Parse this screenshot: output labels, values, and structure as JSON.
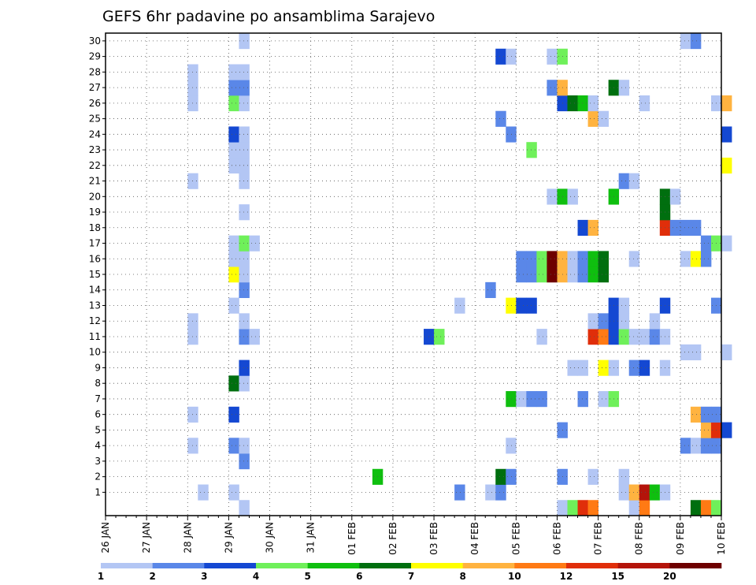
{
  "chart_data": {
    "type": "heatmap",
    "title": "GEFS 6hr padavine po ansamblima Sarajevo",
    "xlabel": "",
    "ylabel": "",
    "x_ticks": [
      "26 JAN",
      "27 JAN",
      "28 JAN",
      "29 JAN",
      "30 JAN",
      "31 JAN",
      "01 FEB",
      "02 FEB",
      "03 FEB",
      "04 FEB",
      "05 FEB",
      "06 FEB",
      "07 FEB",
      "08 FEB",
      "09 FEB",
      "10 FEB"
    ],
    "x_range": [
      "26 JAN 00z",
      "10 FEB 00z"
    ],
    "x_step_hours": 6,
    "y_ticks": [
      1,
      2,
      3,
      4,
      5,
      6,
      7,
      8,
      9,
      10,
      11,
      12,
      13,
      14,
      15,
      16,
      17,
      18,
      19,
      20,
      21,
      22,
      23,
      24,
      25,
      26,
      27,
      28,
      29,
      30
    ],
    "y_range": [
      0,
      30
    ],
    "grid": true,
    "colorbar": {
      "labels": [
        1,
        2,
        3,
        4,
        5,
        6,
        7,
        8,
        10,
        12,
        15,
        20
      ],
      "colors": [
        "#b3c6f4",
        "#5a87e8",
        "#1448d2",
        "#6ff05a",
        "#0fbf0f",
        "#006f0f",
        "#ffff00",
        "#ffb340",
        "#ff7a14",
        "#e02e0a",
        "#b4140a",
        "#6e0000"
      ]
    },
    "cells": [
      {
        "t": 9,
        "m": 1,
        "c": 0
      },
      {
        "t": 8,
        "m": 4,
        "c": 0
      },
      {
        "t": 8,
        "m": 6,
        "c": 0
      },
      {
        "t": 8,
        "m": 12,
        "c": 0
      },
      {
        "t": 8,
        "m": 11,
        "c": 0
      },
      {
        "t": 8,
        "m": 26,
        "c": 0
      },
      {
        "t": 8,
        "m": 27,
        "c": 0
      },
      {
        "t": 8,
        "m": 28,
        "c": 0
      },
      {
        "t": 8,
        "m": 21,
        "c": 0
      },
      {
        "t": 12,
        "m": 1,
        "c": 0
      },
      {
        "t": 12,
        "m": 4,
        "c": 1
      },
      {
        "t": 12,
        "m": 6,
        "c": 2
      },
      {
        "t": 12,
        "m": 8,
        "c": 5
      },
      {
        "t": 12,
        "m": 13,
        "c": 0
      },
      {
        "t": 12,
        "m": 15,
        "c": 6
      },
      {
        "t": 12,
        "m": 16,
        "c": 0
      },
      {
        "t": 12,
        "m": 17,
        "c": 0
      },
      {
        "t": 12,
        "m": 22,
        "c": 0
      },
      {
        "t": 12,
        "m": 23,
        "c": 0
      },
      {
        "t": 12,
        "m": 24,
        "c": 2
      },
      {
        "t": 12,
        "m": 26,
        "c": 3
      },
      {
        "t": 12,
        "m": 27,
        "c": 1
      },
      {
        "t": 12,
        "m": 28,
        "c": 0
      },
      {
        "t": 13,
        "m": 0,
        "c": 0
      },
      {
        "t": 13,
        "m": 3,
        "c": 1
      },
      {
        "t": 13,
        "m": 4,
        "c": 0
      },
      {
        "t": 13,
        "m": 8,
        "c": 0
      },
      {
        "t": 13,
        "m": 9,
        "c": 2
      },
      {
        "t": 13,
        "m": 11,
        "c": 1
      },
      {
        "t": 13,
        "m": 12,
        "c": 0
      },
      {
        "t": 13,
        "m": 14,
        "c": 1
      },
      {
        "t": 13,
        "m": 15,
        "c": 0
      },
      {
        "t": 13,
        "m": 16,
        "c": 0
      },
      {
        "t": 13,
        "m": 17,
        "c": 3
      },
      {
        "t": 13,
        "m": 19,
        "c": 0
      },
      {
        "t": 13,
        "m": 21,
        "c": 0
      },
      {
        "t": 13,
        "m": 22,
        "c": 0
      },
      {
        "t": 13,
        "m": 23,
        "c": 0
      },
      {
        "t": 13,
        "m": 24,
        "c": 0
      },
      {
        "t": 13,
        "m": 26,
        "c": 0
      },
      {
        "t": 13,
        "m": 27,
        "c": 1
      },
      {
        "t": 13,
        "m": 28,
        "c": 0
      },
      {
        "t": 13,
        "m": 30,
        "c": 0
      },
      {
        "t": 14,
        "m": 11,
        "c": 0
      },
      {
        "t": 14,
        "m": 17,
        "c": 0
      },
      {
        "t": 26,
        "m": 2,
        "c": 4
      },
      {
        "t": 31,
        "m": 11,
        "c": 2
      },
      {
        "t": 32,
        "m": 11,
        "c": 3
      },
      {
        "t": 34,
        "m": 1,
        "c": 1
      },
      {
        "t": 34,
        "m": 13,
        "c": 0
      },
      {
        "t": 37,
        "m": 1,
        "c": 0
      },
      {
        "t": 37,
        "m": 14,
        "c": 1
      },
      {
        "t": 38,
        "m": 1,
        "c": 1
      },
      {
        "t": 38,
        "m": 2,
        "c": 5
      },
      {
        "t": 38,
        "m": 25,
        "c": 1
      },
      {
        "t": 38,
        "m": 29,
        "c": 2
      },
      {
        "t": 39,
        "m": 2,
        "c": 1
      },
      {
        "t": 39,
        "m": 4,
        "c": 0
      },
      {
        "t": 39,
        "m": 7,
        "c": 4
      },
      {
        "t": 39,
        "m": 13,
        "c": 6
      },
      {
        "t": 39,
        "m": 24,
        "c": 1
      },
      {
        "t": 39,
        "m": 29,
        "c": 0
      },
      {
        "t": 40,
        "m": 7,
        "c": 0
      },
      {
        "t": 40,
        "m": 13,
        "c": 2
      },
      {
        "t": 40,
        "m": 15,
        "c": 1
      },
      {
        "t": 40,
        "m": 16,
        "c": 1
      },
      {
        "t": 41,
        "m": 7,
        "c": 1
      },
      {
        "t": 41,
        "m": 13,
        "c": 2
      },
      {
        "t": 41,
        "m": 15,
        "c": 1
      },
      {
        "t": 41,
        "m": 16,
        "c": 1
      },
      {
        "t": 41,
        "m": 23,
        "c": 3
      },
      {
        "t": 42,
        "m": 7,
        "c": 1
      },
      {
        "t": 42,
        "m": 11,
        "c": 0
      },
      {
        "t": 42,
        "m": 15,
        "c": 3
      },
      {
        "t": 42,
        "m": 16,
        "c": 3
      },
      {
        "t": 43,
        "m": 15,
        "c": 11
      },
      {
        "t": 43,
        "m": 16,
        "c": 11
      },
      {
        "t": 43,
        "m": 20,
        "c": 0
      },
      {
        "t": 43,
        "m": 27,
        "c": 1
      },
      {
        "t": 43,
        "m": 29,
        "c": 0
      },
      {
        "t": 44,
        "m": 0,
        "c": 0
      },
      {
        "t": 44,
        "m": 2,
        "c": 1
      },
      {
        "t": 44,
        "m": 5,
        "c": 1
      },
      {
        "t": 44,
        "m": 15,
        "c": 7
      },
      {
        "t": 44,
        "m": 16,
        "c": 7
      },
      {
        "t": 44,
        "m": 20,
        "c": 4
      },
      {
        "t": 44,
        "m": 26,
        "c": 2
      },
      {
        "t": 44,
        "m": 27,
        "c": 7
      },
      {
        "t": 44,
        "m": 29,
        "c": 3
      },
      {
        "t": 45,
        "m": 0,
        "c": 3
      },
      {
        "t": 45,
        "m": 9,
        "c": 0
      },
      {
        "t": 45,
        "m": 15,
        "c": 0
      },
      {
        "t": 45,
        "m": 16,
        "c": 0
      },
      {
        "t": 45,
        "m": 20,
        "c": 0
      },
      {
        "t": 45,
        "m": 26,
        "c": 5
      },
      {
        "t": 46,
        "m": 0,
        "c": 9
      },
      {
        "t": 46,
        "m": 7,
        "c": 1
      },
      {
        "t": 46,
        "m": 9,
        "c": 0
      },
      {
        "t": 46,
        "m": 15,
        "c": 1
      },
      {
        "t": 46,
        "m": 16,
        "c": 1
      },
      {
        "t": 46,
        "m": 18,
        "c": 2
      },
      {
        "t": 46,
        "m": 26,
        "c": 4
      },
      {
        "t": 47,
        "m": 0,
        "c": 8
      },
      {
        "t": 47,
        "m": 2,
        "c": 0
      },
      {
        "t": 47,
        "m": 11,
        "c": 9
      },
      {
        "t": 47,
        "m": 12,
        "c": 0
      },
      {
        "t": 47,
        "m": 15,
        "c": 4
      },
      {
        "t": 47,
        "m": 16,
        "c": 4
      },
      {
        "t": 47,
        "m": 18,
        "c": 7
      },
      {
        "t": 47,
        "m": 25,
        "c": 7
      },
      {
        "t": 47,
        "m": 26,
        "c": 0
      },
      {
        "t": 48,
        "m": 7,
        "c": 0
      },
      {
        "t": 48,
        "m": 9,
        "c": 6
      },
      {
        "t": 48,
        "m": 11,
        "c": 8
      },
      {
        "t": 48,
        "m": 12,
        "c": 1
      },
      {
        "t": 48,
        "m": 15,
        "c": 5
      },
      {
        "t": 48,
        "m": 16,
        "c": 5
      },
      {
        "t": 48,
        "m": 25,
        "c": 0
      },
      {
        "t": 49,
        "m": 7,
        "c": 3
      },
      {
        "t": 49,
        "m": 9,
        "c": 0
      },
      {
        "t": 49,
        "m": 11,
        "c": 2
      },
      {
        "t": 49,
        "m": 12,
        "c": 2
      },
      {
        "t": 49,
        "m": 13,
        "c": 2
      },
      {
        "t": 49,
        "m": 20,
        "c": 4
      },
      {
        "t": 49,
        "m": 27,
        "c": 5
      },
      {
        "t": 50,
        "m": 1,
        "c": 0
      },
      {
        "t": 50,
        "m": 2,
        "c": 0
      },
      {
        "t": 50,
        "m": 11,
        "c": 3
      },
      {
        "t": 50,
        "m": 12,
        "c": 0
      },
      {
        "t": 50,
        "m": 13,
        "c": 0
      },
      {
        "t": 50,
        "m": 21,
        "c": 1
      },
      {
        "t": 50,
        "m": 27,
        "c": 0
      },
      {
        "t": 51,
        "m": 0,
        "c": 0
      },
      {
        "t": 51,
        "m": 1,
        "c": 7
      },
      {
        "t": 51,
        "m": 9,
        "c": 1
      },
      {
        "t": 51,
        "m": 11,
        "c": 0
      },
      {
        "t": 51,
        "m": 16,
        "c": 0
      },
      {
        "t": 51,
        "m": 21,
        "c": 0
      },
      {
        "t": 52,
        "m": 0,
        "c": 8
      },
      {
        "t": 52,
        "m": 1,
        "c": 10
      },
      {
        "t": 52,
        "m": 9,
        "c": 2
      },
      {
        "t": 52,
        "m": 11,
        "c": 0
      },
      {
        "t": 52,
        "m": 26,
        "c": 0
      },
      {
        "t": 53,
        "m": 1,
        "c": 4
      },
      {
        "t": 53,
        "m": 11,
        "c": 1
      },
      {
        "t": 53,
        "m": 12,
        "c": 0
      },
      {
        "t": 54,
        "m": 1,
        "c": 0
      },
      {
        "t": 54,
        "m": 9,
        "c": 0
      },
      {
        "t": 54,
        "m": 11,
        "c": 0
      },
      {
        "t": 54,
        "m": 13,
        "c": 2
      },
      {
        "t": 54,
        "m": 18,
        "c": 9
      },
      {
        "t": 54,
        "m": 19,
        "c": 5
      },
      {
        "t": 54,
        "m": 20,
        "c": 5
      },
      {
        "t": 55,
        "m": 18,
        "c": 1
      },
      {
        "t": 55,
        "m": 20,
        "c": 0
      },
      {
        "t": 56,
        "m": 4,
        "c": 1
      },
      {
        "t": 56,
        "m": 10,
        "c": 0
      },
      {
        "t": 56,
        "m": 16,
        "c": 0
      },
      {
        "t": 56,
        "m": 18,
        "c": 1
      },
      {
        "t": 56,
        "m": 30,
        "c": 0
      },
      {
        "t": 57,
        "m": 0,
        "c": 5
      },
      {
        "t": 57,
        "m": 4,
        "c": 0
      },
      {
        "t": 57,
        "m": 6,
        "c": 7
      },
      {
        "t": 57,
        "m": 10,
        "c": 0
      },
      {
        "t": 57,
        "m": 16,
        "c": 6
      },
      {
        "t": 57,
        "m": 18,
        "c": 1
      },
      {
        "t": 57,
        "m": 30,
        "c": 1
      },
      {
        "t": 58,
        "m": 0,
        "c": 8
      },
      {
        "t": 58,
        "m": 4,
        "c": 1
      },
      {
        "t": 58,
        "m": 5,
        "c": 7
      },
      {
        "t": 58,
        "m": 6,
        "c": 1
      },
      {
        "t": 58,
        "m": 16,
        "c": 1
      },
      {
        "t": 58,
        "m": 17,
        "c": 1
      },
      {
        "t": 59,
        "m": 0,
        "c": 3
      },
      {
        "t": 59,
        "m": 4,
        "c": 1
      },
      {
        "t": 59,
        "m": 5,
        "c": 9
      },
      {
        "t": 59,
        "m": 6,
        "c": 1
      },
      {
        "t": 59,
        "m": 13,
        "c": 1
      },
      {
        "t": 59,
        "m": 17,
        "c": 3
      },
      {
        "t": 59,
        "m": 26,
        "c": 0
      },
      {
        "t": 60,
        "m": 5,
        "c": 2
      },
      {
        "t": 60,
        "m": 10,
        "c": 0
      },
      {
        "t": 60,
        "m": 17,
        "c": 0
      },
      {
        "t": 60,
        "m": 22,
        "c": 6
      },
      {
        "t": 60,
        "m": 24,
        "c": 2
      },
      {
        "t": 60,
        "m": 26,
        "c": 7
      }
    ]
  }
}
